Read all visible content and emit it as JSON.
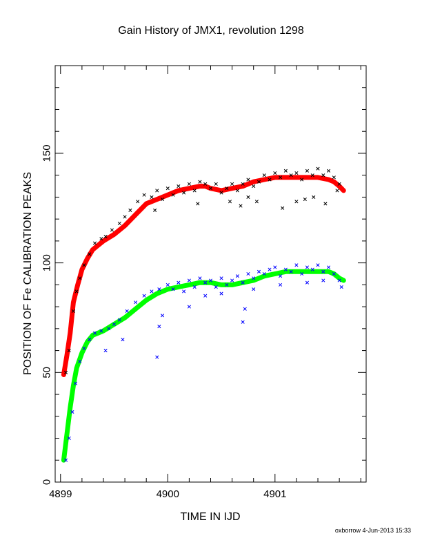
{
  "chart_data": {
    "type": "scatter",
    "title": "Gain History of JMX1, revolution 1298",
    "xlabel": "TIME IN IJD",
    "ylabel": "POSITION OF Fe CALIBRATION PEAKS",
    "xlim": [
      4898.95,
      4901.85
    ],
    "ylim": [
      0,
      190
    ],
    "xticks_labeled": [
      4899,
      4900,
      4901
    ],
    "xtick_minor_step": 0.2,
    "yticks_labeled": [
      0,
      50,
      100,
      150
    ],
    "ytick_minor_step": 10,
    "grid": false,
    "series": [
      {
        "color": "#ff0000",
        "marker": "dense-line",
        "x": [
          4899.03,
          4899.06,
          4899.09,
          4899.12,
          4899.16,
          4899.2,
          4899.25,
          4899.3,
          4899.35,
          4899.4,
          4899.5,
          4899.6,
          4899.7,
          4899.8,
          4899.9,
          4900.0,
          4900.1,
          4900.2,
          4900.3,
          4900.35,
          4900.4,
          4900.5,
          4900.6,
          4900.7,
          4900.8,
          4900.9,
          4901.0,
          4901.1,
          4901.2,
          4901.3,
          4901.4,
          4901.5,
          4901.55,
          4901.6,
          4901.64
        ],
        "y": [
          49,
          58,
          68,
          82,
          90,
          97,
          102,
          106,
          108,
          110,
          113,
          117,
          122,
          127,
          129,
          131,
          133,
          134,
          135,
          135,
          134,
          133,
          134,
          135,
          137,
          138,
          139,
          139,
          139,
          139,
          139,
          138,
          137,
          135,
          133
        ]
      },
      {
        "color": "#000000",
        "marker": "x",
        "x": [
          4899.05,
          4899.08,
          4899.12,
          4899.15,
          4899.18,
          4899.22,
          4899.27,
          4899.32,
          4899.38,
          4899.42,
          4899.48,
          4899.55,
          4899.6,
          4899.65,
          4899.72,
          4899.78,
          4899.85,
          4899.9,
          4899.95,
          4900.0,
          4900.05,
          4900.1,
          4900.15,
          4900.2,
          4900.25,
          4900.3,
          4900.35,
          4900.4,
          4900.45,
          4900.5,
          4900.55,
          4900.6,
          4900.65,
          4900.7,
          4900.75,
          4900.8,
          4900.85,
          4900.9,
          4900.95,
          4901.0,
          4901.05,
          4901.1,
          4901.15,
          4901.2,
          4901.25,
          4901.3,
          4901.35,
          4901.4,
          4901.45,
          4901.5,
          4901.55,
          4901.6,
          4899.88,
          4900.28,
          4900.58,
          4900.68,
          4900.75,
          4900.83,
          4901.07,
          4901.2,
          4901.28,
          4901.36,
          4901.47,
          4901.58
        ],
        "y": [
          50,
          60,
          78,
          87,
          93,
          99,
          104,
          109,
          111,
          112,
          115,
          118,
          121,
          124,
          128,
          131,
          130,
          133,
          129,
          134,
          131,
          135,
          132,
          136,
          133,
          137,
          136,
          134,
          136,
          132,
          134,
          136,
          133,
          136,
          138,
          135,
          137,
          140,
          138,
          141,
          139,
          142,
          140,
          141,
          138,
          142,
          140,
          143,
          140,
          142,
          139,
          136,
          124,
          127,
          128,
          126,
          130,
          128,
          125,
          128,
          129,
          130,
          127,
          133
        ]
      },
      {
        "color": "#00ff00",
        "marker": "dense-line",
        "x": [
          4899.03,
          4899.06,
          4899.09,
          4899.12,
          4899.15,
          4899.2,
          4899.25,
          4899.3,
          4899.35,
          4899.4,
          4899.5,
          4899.6,
          4899.7,
          4899.8,
          4899.9,
          4900.0,
          4900.1,
          4900.2,
          4900.3,
          4900.35,
          4900.4,
          4900.5,
          4900.6,
          4900.7,
          4900.8,
          4900.9,
          4901.0,
          4901.1,
          4901.2,
          4901.3,
          4901.4,
          4901.5,
          4901.55,
          4901.6,
          4901.64
        ],
        "y": [
          10,
          22,
          34,
          44,
          52,
          59,
          64,
          67,
          68,
          69,
          72,
          75,
          79,
          83,
          86,
          88,
          89,
          90,
          91,
          91,
          91,
          90,
          90,
          91,
          92,
          94,
          95,
          96,
          96,
          96,
          96,
          96,
          95,
          93,
          92
        ]
      },
      {
        "color": "#0000ff",
        "marker": "x",
        "x": [
          4899.05,
          4899.08,
          4899.11,
          4899.14,
          4899.18,
          4899.22,
          4899.27,
          4899.32,
          4899.38,
          4899.45,
          4899.5,
          4899.55,
          4899.62,
          4899.7,
          4899.78,
          4899.85,
          4899.92,
          4900.0,
          4900.05,
          4900.1,
          4900.15,
          4900.2,
          4900.25,
          4900.3,
          4900.35,
          4900.4,
          4900.45,
          4900.5,
          4900.55,
          4900.6,
          4900.65,
          4900.7,
          4900.75,
          4900.8,
          4900.85,
          4900.9,
          4900.95,
          4901.0,
          4901.05,
          4901.1,
          4901.15,
          4901.2,
          4901.25,
          4901.3,
          4901.35,
          4901.4,
          4901.45,
          4901.5,
          4901.55,
          4901.6,
          4899.42,
          4899.58,
          4899.9,
          4899.92,
          4899.95,
          4900.2,
          4900.35,
          4900.5,
          4900.7,
          4900.72,
          4900.8,
          4901.05,
          4901.3,
          4901.45,
          4901.62
        ],
        "y": [
          10,
          20,
          32,
          45,
          55,
          61,
          65,
          68,
          69,
          70,
          72,
          74,
          78,
          82,
          85,
          87,
          88,
          90,
          88,
          91,
          87,
          92,
          89,
          93,
          91,
          92,
          89,
          93,
          90,
          92,
          94,
          91,
          95,
          93,
          96,
          95,
          97,
          98,
          94,
          97,
          96,
          99,
          95,
          98,
          97,
          99,
          96,
          98,
          95,
          92,
          60,
          65,
          57,
          71,
          76,
          80,
          85,
          86,
          73,
          79,
          88,
          90,
          91,
          92,
          89
        ]
      }
    ]
  },
  "footer": {
    "credit": "oxborrow  4-Jun-2013 15:33"
  }
}
